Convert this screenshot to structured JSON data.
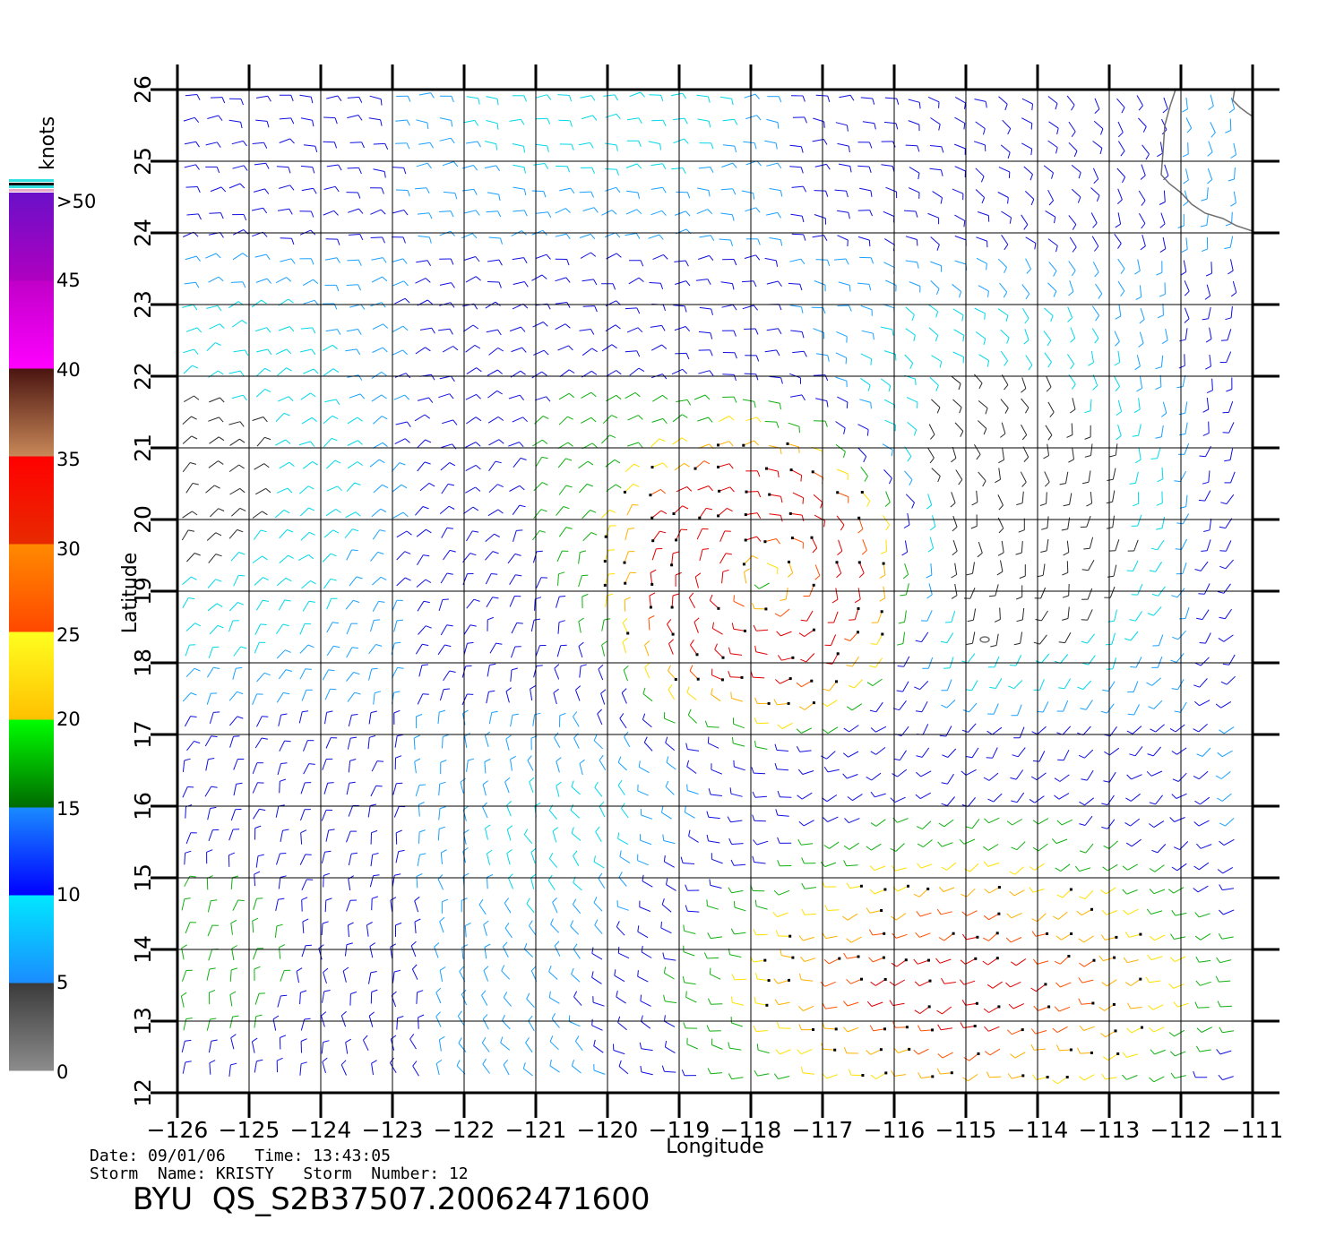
{
  "map": {
    "lon_range": [
      -126,
      -110.5
    ],
    "lat_range": [
      12,
      26
    ],
    "lon_ticks": [
      -126,
      -125,
      -124,
      -123,
      -122,
      -121,
      -120,
      -119,
      -118,
      -117,
      -116,
      -115,
      -114,
      -113,
      -112,
      -111
    ],
    "lat_ticks": [
      12,
      13,
      14,
      15,
      16,
      17,
      18,
      19,
      20,
      21,
      22,
      23,
      24,
      25,
      26
    ],
    "lon_tick_labels": [
      "−126",
      "−125",
      "−124",
      "−123",
      "−122",
      "−121",
      "−120",
      "−119",
      "−118",
      "−117",
      "−116",
      "−115",
      "−114",
      "−113",
      "−112",
      "−111"
    ],
    "lat_tick_labels": [
      "12",
      "13",
      "14",
      "15",
      "16",
      "17",
      "18",
      "19",
      "20",
      "21",
      "22",
      "23",
      "24",
      "25",
      "26"
    ],
    "xlabel": "Longitude",
    "ylabel": "Latitude",
    "grid": true,
    "storm_center": {
      "lon": -117.8,
      "lat": 19.2
    },
    "field_description": "scatterometer wind barbs"
  },
  "colorbar": {
    "unit": "knots",
    "labels": [
      ">50",
      "45",
      "40",
      "35",
      "30",
      "25",
      "20",
      "15",
      "10",
      "5",
      "0"
    ],
    "bands": [
      {
        "from": 0,
        "to": 5,
        "top": "#3a3a3a",
        "bottom": "#8c8c8c"
      },
      {
        "from": 5,
        "to": 10,
        "top": "#00e8ff",
        "bottom": "#1a8cff"
      },
      {
        "from": 10,
        "to": 15,
        "top": "#1a8cff",
        "bottom": "#0000ff"
      },
      {
        "from": 15,
        "to": 20,
        "top": "#00ff00",
        "bottom": "#006a00"
      },
      {
        "from": 20,
        "to": 25,
        "top": "#ffff20",
        "bottom": "#ffc000"
      },
      {
        "from": 25,
        "to": 30,
        "top": "#ff8a00",
        "bottom": "#ff4800"
      },
      {
        "from": 30,
        "to": 35,
        "top": "#ff0000",
        "bottom": "#e82a00"
      },
      {
        "from": 35,
        "to": 40,
        "top": "#4a1410",
        "bottom": "#c88858"
      },
      {
        "from": 40,
        "to": 45,
        "top": "#c000c8",
        "bottom": "#ff00ff"
      },
      {
        "from": 45,
        "to": 50,
        "top": "#6a10c8",
        "bottom": "#b000c0"
      }
    ]
  },
  "meta": {
    "date_line": "Date: 09/01/06   Time: 13:43:05",
    "storm_line": "Storm  Name: KRISTY   Storm  Number: 12",
    "title": "BYU  QS_S2B37507.20062471600"
  }
}
